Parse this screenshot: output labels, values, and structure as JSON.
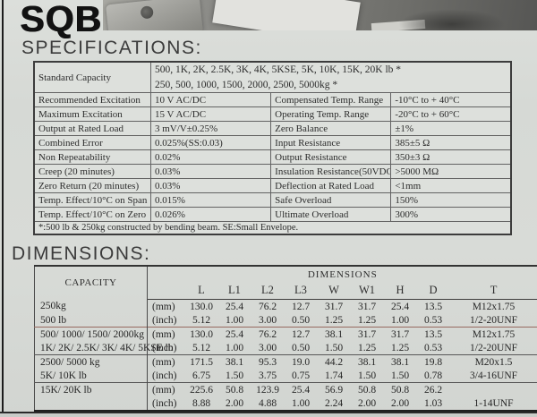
{
  "page": {
    "title": "SQB",
    "spec_heading": "SPECIFICATIONS:",
    "dim_heading": "DIMENSIONS:"
  },
  "spec_table": {
    "capacity_row": {
      "label": "Standard Capacity",
      "line1": "500, 1K, 2K, 2.5K, 3K, 4K, 5KSE, 5K, 10K, 15K, 20K lb *",
      "line2": "250, 500, 1000, 1500, 2000, 2500, 5000kg *"
    },
    "rows": [
      {
        "label1": "Recommended Excitation",
        "value1": "10 V AC/DC",
        "label2": "Compensated Temp. Range",
        "value2": "-10°C to + 40°C"
      },
      {
        "label1": "Maximum Excitation",
        "value1": "15 V AC/DC",
        "label2": "Operating Temp. Range",
        "value2": "-20°C to + 60°C"
      },
      {
        "label1": "Output at Rated Load",
        "value1": "3 mV/V±0.25%",
        "label2": "Zero Balance",
        "value2": "±1%"
      },
      {
        "label1": "Combined Error",
        "value1": "0.025%(SS:0.03)",
        "label2": "Input Resistance",
        "value2": "385±5 Ω"
      },
      {
        "label1": "Non Repeatability",
        "value1": "0.02%",
        "label2": "Output Resistance",
        "value2": "350±3 Ω"
      },
      {
        "label1": "Creep (20 minutes)",
        "value1": "0.03%",
        "label2": "Insulation Resistance(50VDC)",
        "value2": ">5000 MΩ"
      },
      {
        "label1": "Zero Return (20 minutes)",
        "value1": "0.03%",
        "label2": "Deflection at Rated Load",
        "value2": "<1mm"
      },
      {
        "label1": "Temp. Effect/10°C on Span",
        "value1": "0.015%",
        "label2": "Safe Overload",
        "value2": "150%"
      },
      {
        "label1": "Temp. Effect/10°C on Zero",
        "value1": "0.026%",
        "label2": "Ultimate Overload",
        "value2": "300%"
      }
    ],
    "footnote": "*:500 lb & 250kg constructed by bending beam. SE:Small Envelope."
  },
  "dim_table": {
    "capacity_header": "CAPACITY",
    "group_header": "DIMENSIONS",
    "columns": [
      "L",
      "L1",
      "L2",
      "L3",
      "W",
      "W1",
      "H",
      "D",
      "T"
    ],
    "units": {
      "mm": "(mm)",
      "inch": "(inch)"
    },
    "groups": [
      {
        "capacity_lines": [
          "250kg",
          "500 lb"
        ],
        "mm": [
          "130.0",
          "25.4",
          "76.2",
          "12.7",
          "31.7",
          "31.7",
          "25.4",
          "13.5",
          "M12x1.75"
        ],
        "inch": [
          "5.12",
          "1.00",
          "3.00",
          "0.50",
          "1.25",
          "1.25",
          "1.00",
          "0.53",
          "1/2-20UNF"
        ]
      },
      {
        "capacity_lines": [
          "500/ 1000/ 1500/ 2000kg",
          "1K/ 2K/ 2.5K/ 3K/ 4K/ 5KSE lb"
        ],
        "mm": [
          "130.0",
          "25.4",
          "76.2",
          "12.7",
          "38.1",
          "31.7",
          "31.7",
          "13.5",
          "M12x1.75"
        ],
        "inch": [
          "5.12",
          "1.00",
          "3.00",
          "0.50",
          "1.50",
          "1.25",
          "1.25",
          "0.53",
          "1/2-20UNF"
        ]
      },
      {
        "capacity_lines": [
          "2500/ 5000 kg",
          "5K/ 10K lb"
        ],
        "mm": [
          "171.5",
          "38.1",
          "95.3",
          "19.0",
          "44.2",
          "38.1",
          "38.1",
          "19.8",
          "M20x1.5"
        ],
        "inch": [
          "6.75",
          "1.50",
          "3.75",
          "0.75",
          "1.74",
          "1.50",
          "1.50",
          "0.78",
          "3/4-16UNF"
        ]
      },
      {
        "capacity_lines": [
          "15K/ 20K lb",
          ""
        ],
        "mm": [
          "225.6",
          "50.8",
          "123.9",
          "25.4",
          "56.9",
          "50.8",
          "50.8",
          "26.2",
          ""
        ],
        "inch": [
          "8.88",
          "2.00",
          "4.88",
          "1.00",
          "2.24",
          "2.00",
          "2.00",
          "1.03",
          "1-14UNF"
        ]
      }
    ]
  }
}
